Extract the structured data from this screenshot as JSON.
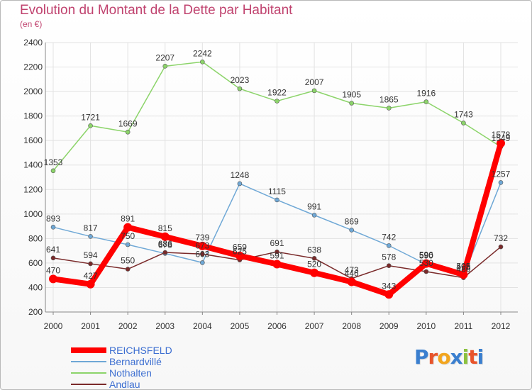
{
  "title": "Evolution du Montant de la Dette par Habitant",
  "subtitle": "(en €)",
  "logo": {
    "text": "Proxiti",
    "colors": [
      "#3a7fcf",
      "#e8542b",
      "#f2a51e",
      "#3a7fcf",
      "#8cc23f",
      "#e8542b",
      "#3a7fcf"
    ]
  },
  "chart_data": {
    "type": "line",
    "title": "Evolution du Montant de la Dette par Habitant",
    "subtitle": "(en €)",
    "xlabel": "",
    "ylabel": "",
    "x": [
      "2000",
      "2001",
      "2002",
      "2003",
      "2004",
      "2005",
      "2006",
      "2007",
      "2008",
      "2009",
      "2010",
      "2011",
      "2012"
    ],
    "ylim": [
      200,
      2400
    ],
    "yticks": [
      200,
      400,
      600,
      800,
      1000,
      1200,
      1400,
      1600,
      1800,
      2000,
      2200,
      2400
    ],
    "grid": true,
    "legend_position": "bottom-left",
    "series": [
      {
        "name": "REICHSFELD",
        "color": "#ff0000",
        "values": [
          470,
          427,
          891,
          815,
          739,
          659,
          591,
          520,
          446,
          343,
          596,
          505,
          1578
        ]
      },
      {
        "name": "Bernardvillé",
        "color": "#6fa8d6",
        "values": [
          893,
          817,
          750,
          678,
          603,
          1248,
          1115,
          991,
          869,
          742,
          590,
          498,
          1257
        ]
      },
      {
        "name": "Nothalten",
        "color": "#8cd46a",
        "values": [
          1353,
          1721,
          1669,
          2207,
          2242,
          2023,
          1922,
          2007,
          1905,
          1865,
          1916,
          1743,
          1549
        ]
      },
      {
        "name": "Andlau",
        "color": "#7a2a2a",
        "values": [
          641,
          594,
          550,
          686,
          673,
          625,
          691,
          638,
          473,
          578,
          530,
          480,
          732
        ]
      }
    ]
  }
}
